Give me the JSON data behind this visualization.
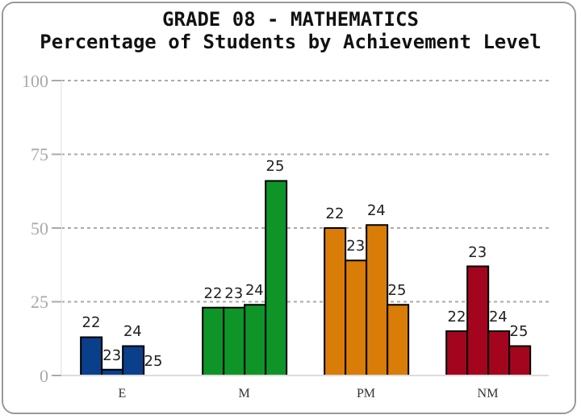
{
  "chart_data": {
    "type": "bar",
    "title": "GRADE 08 - MATHEMATICS",
    "subtitle": "Percentage of Students by Achievement Level",
    "categories": [
      "E",
      "M",
      "PM",
      "NM"
    ],
    "series": [
      {
        "name": "22",
        "colors": [
          "#0a3f8c",
          "#0f9428",
          "#d97c08",
          "#a3051f"
        ],
        "values": [
          13,
          23,
          50,
          15
        ]
      },
      {
        "name": "23",
        "colors": [
          "#0a3f8c",
          "#0f9428",
          "#d97c08",
          "#a3051f"
        ],
        "values": [
          2,
          23,
          39,
          37
        ]
      },
      {
        "name": "24",
        "colors": [
          "#0a3f8c",
          "#0f9428",
          "#d97c08",
          "#a3051f"
        ],
        "values": [
          10,
          24,
          51,
          15
        ]
      },
      {
        "name": "25",
        "colors": [
          "#0a3f8c",
          "#0f9428",
          "#d97c08",
          "#a3051f"
        ],
        "values": [
          0,
          66,
          24,
          10
        ]
      }
    ],
    "ylim": [
      0,
      100
    ],
    "yticks": [
      0,
      25,
      50,
      75,
      100
    ],
    "grid": "y",
    "legend": false
  }
}
